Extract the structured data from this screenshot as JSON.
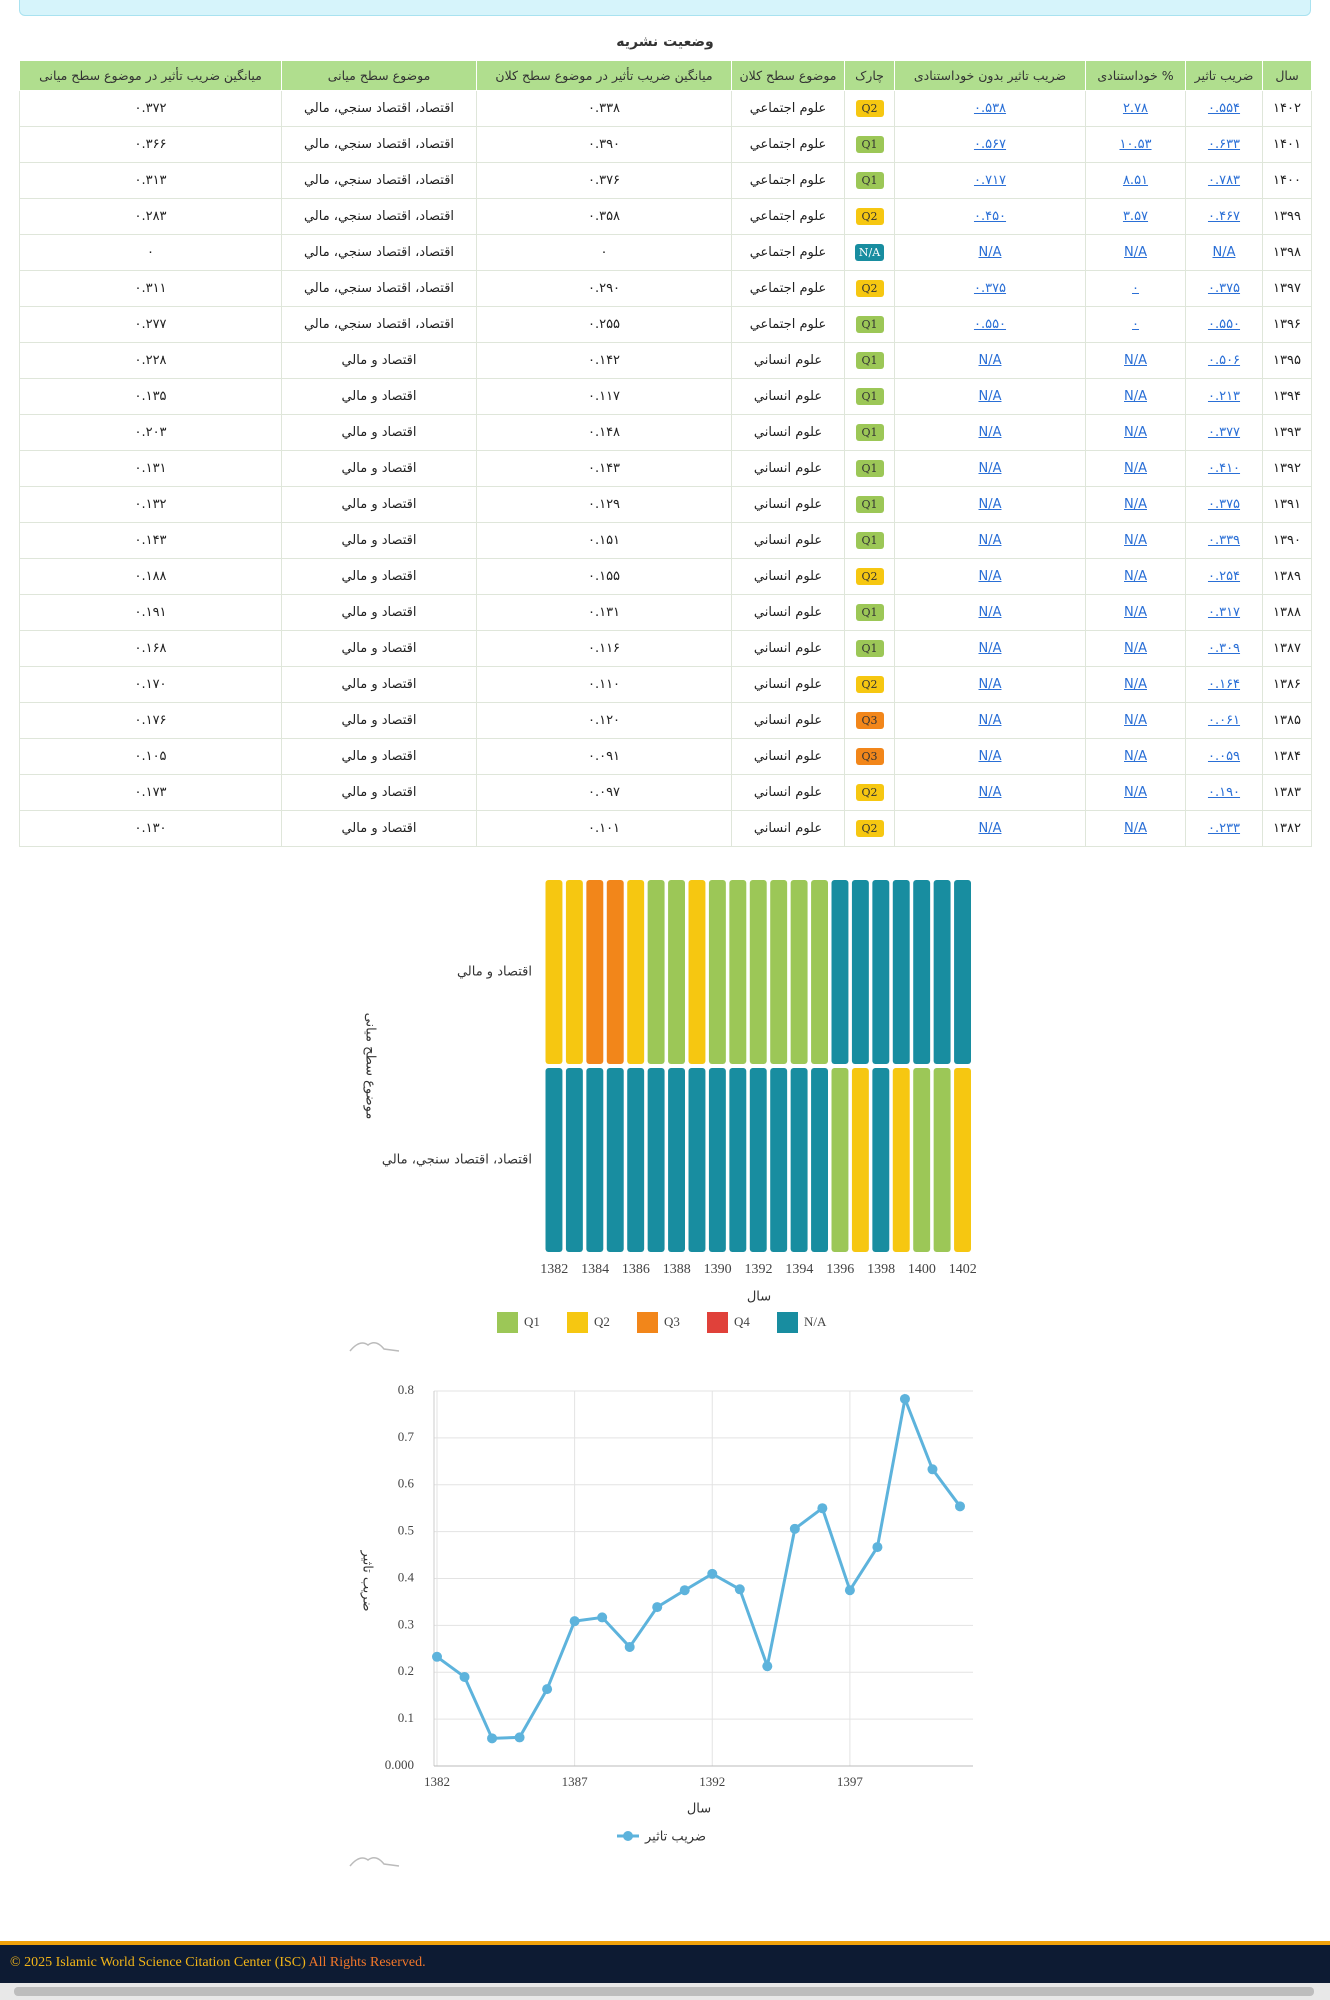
{
  "page_title": "وضعیت نشریه",
  "table": {
    "header": [
      "سال",
      "ضریب تاثیر",
      "% خوداستنادی",
      "ضریب تاثیر بدون خوداستنادی",
      "چارک",
      "موضوع سطح کلان",
      "میانگین ضریب تأثیر در موضوع سطح کلان",
      "موضوع سطح میانی",
      "میانگین ضریب تأثیر در موضوع سطح میانی"
    ],
    "rows": [
      [
        "۱۴۰۲",
        "۰.۵۵۴",
        "۲.۷۸",
        "۰.۵۳۸",
        "Q2",
        "علوم اجتماعي",
        "۰.۳۳۸",
        "اقتصاد، اقتصاد سنجي، مالي",
        "۰.۳۷۲"
      ],
      [
        "۱۴۰۱",
        "۰.۶۳۳",
        "۱۰.۵۳",
        "۰.۵۶۷",
        "Q1",
        "علوم اجتماعي",
        "۰.۳۹۰",
        "اقتصاد، اقتصاد سنجي، مالي",
        "۰.۳۶۶"
      ],
      [
        "۱۴۰۰",
        "۰.۷۸۳",
        "۸.۵۱",
        "۰.۷۱۷",
        "Q1",
        "علوم اجتماعي",
        "۰.۳۷۶",
        "اقتصاد، اقتصاد سنجي، مالي",
        "۰.۳۱۳"
      ],
      [
        "۱۳۹۹",
        "۰.۴۶۷",
        "۳.۵۷",
        "۰.۴۵۰",
        "Q2",
        "علوم اجتماعي",
        "۰.۳۵۸",
        "اقتصاد، اقتصاد سنجي، مالي",
        "۰.۲۸۳"
      ],
      [
        "۱۳۹۸",
        "N/A",
        "N/A",
        "N/A",
        "N/A",
        "علوم اجتماعي",
        "۰",
        "اقتصاد، اقتصاد سنجي، مالي",
        "۰"
      ],
      [
        "۱۳۹۷",
        "۰.۳۷۵",
        "۰",
        "۰.۳۷۵",
        "Q2",
        "علوم اجتماعي",
        "۰.۲۹۰",
        "اقتصاد، اقتصاد سنجي، مالي",
        "۰.۳۱۱"
      ],
      [
        "۱۳۹۶",
        "۰.۵۵۰",
        "۰",
        "۰.۵۵۰",
        "Q1",
        "علوم اجتماعي",
        "۰.۲۵۵",
        "اقتصاد، اقتصاد سنجي، مالي",
        "۰.۲۷۷"
      ],
      [
        "۱۳۹۵",
        "۰.۵۰۶",
        "N/A",
        "N/A",
        "Q1",
        "علوم انساني",
        "۰.۱۴۲",
        "اقتصاد و مالي",
        "۰.۲۲۸"
      ],
      [
        "۱۳۹۴",
        "۰.۲۱۳",
        "N/A",
        "N/A",
        "Q1",
        "علوم انساني",
        "۰.۱۱۷",
        "اقتصاد و مالي",
        "۰.۱۳۵"
      ],
      [
        "۱۳۹۳",
        "۰.۳۷۷",
        "N/A",
        "N/A",
        "Q1",
        "علوم انساني",
        "۰.۱۴۸",
        "اقتصاد و مالي",
        "۰.۲۰۳"
      ],
      [
        "۱۳۹۲",
        "۰.۴۱۰",
        "N/A",
        "N/A",
        "Q1",
        "علوم انساني",
        "۰.۱۴۳",
        "اقتصاد و مالي",
        "۰.۱۳۱"
      ],
      [
        "۱۳۹۱",
        "۰.۳۷۵",
        "N/A",
        "N/A",
        "Q1",
        "علوم انساني",
        "۰.۱۲۹",
        "اقتصاد و مالي",
        "۰.۱۳۲"
      ],
      [
        "۱۳۹۰",
        "۰.۳۳۹",
        "N/A",
        "N/A",
        "Q1",
        "علوم انساني",
        "۰.۱۵۱",
        "اقتصاد و مالي",
        "۰.۱۴۳"
      ],
      [
        "۱۳۸۹",
        "۰.۲۵۴",
        "N/A",
        "N/A",
        "Q2",
        "علوم انساني",
        "۰.۱۵۵",
        "اقتصاد و مالي",
        "۰.۱۸۸"
      ],
      [
        "۱۳۸۸",
        "۰.۳۱۷",
        "N/A",
        "N/A",
        "Q1",
        "علوم انساني",
        "۰.۱۳۱",
        "اقتصاد و مالي",
        "۰.۱۹۱"
      ],
      [
        "۱۳۸۷",
        "۰.۳۰۹",
        "N/A",
        "N/A",
        "Q1",
        "علوم انساني",
        "۰.۱۱۶",
        "اقتصاد و مالي",
        "۰.۱۶۸"
      ],
      [
        "۱۳۸۶",
        "۰.۱۶۴",
        "N/A",
        "N/A",
        "Q2",
        "علوم انساني",
        "۰.۱۱۰",
        "اقتصاد و مالي",
        "۰.۱۷۰"
      ],
      [
        "۱۳۸۵",
        "۰.۰۶۱",
        "N/A",
        "N/A",
        "Q3",
        "علوم انساني",
        "۰.۱۲۰",
        "اقتصاد و مالي",
        "۰.۱۷۶"
      ],
      [
        "۱۳۸۴",
        "۰.۰۵۹",
        "N/A",
        "N/A",
        "Q3",
        "علوم انساني",
        "۰.۰۹۱",
        "اقتصاد و مالي",
        "۰.۱۰۵"
      ],
      [
        "۱۳۸۳",
        "۰.۱۹۰",
        "N/A",
        "N/A",
        "Q2",
        "علوم انساني",
        "۰.۰۹۷",
        "اقتصاد و مالي",
        "۰.۱۷۳"
      ],
      [
        "۱۳۸۲",
        "۰.۲۳۳",
        "N/A",
        "N/A",
        "Q2",
        "علوم انساني",
        "۰.۱۰۱",
        "اقتصاد و مالي",
        "۰.۱۳۰"
      ]
    ]
  },
  "chart_data": [
    {
      "type": "heatmap",
      "xlabel": "سال",
      "ylabel": "موضوع سطح میانی",
      "categories": [
        "1382",
        null,
        "1384",
        null,
        "1386",
        null,
        "1388",
        null,
        "1390",
        null,
        "1392",
        null,
        "1394",
        null,
        "1396",
        null,
        "1398",
        null,
        "1400",
        null,
        "1402"
      ],
      "rows": [
        {
          "name": "اقتصاد و مالي",
          "values": [
            "Q2",
            "Q2",
            "Q3",
            "Q3",
            "Q2",
            "Q1",
            "Q1",
            "Q2",
            "Q1",
            "Q1",
            "Q1",
            "Q1",
            "Q1",
            "Q1",
            "N/A",
            "N/A",
            "N/A",
            "N/A",
            "N/A",
            "N/A",
            "N/A"
          ]
        },
        {
          "name": "اقتصاد، اقتصاد سنجي، مالي",
          "values": [
            "N/A",
            "N/A",
            "N/A",
            "N/A",
            "N/A",
            "N/A",
            "N/A",
            "N/A",
            "N/A",
            "N/A",
            "N/A",
            "N/A",
            "N/A",
            "N/A",
            "Q1",
            "Q2",
            "N/A",
            "Q2",
            "Q1",
            "Q1",
            "Q2"
          ]
        }
      ],
      "legend": [
        {
          "name": "Q1",
          "color": "#9cc757"
        },
        {
          "name": "Q2",
          "color": "#f6c711"
        },
        {
          "name": "Q3",
          "color": "#f2861a"
        },
        {
          "name": "Q4",
          "color": "#e0413a"
        },
        {
          "name": "N/A",
          "color": "#188da0"
        }
      ]
    },
    {
      "type": "line",
      "xlabel": "سال",
      "ylabel": "ضریب تاثیر",
      "categories": [
        "1382",
        null,
        null,
        null,
        null,
        "1387",
        null,
        null,
        null,
        null,
        "1392",
        null,
        null,
        null,
        null,
        "1397",
        null,
        null,
        null,
        null
      ],
      "series": [
        {
          "name": "ضریب تاثیر",
          "color": "#5db3dc",
          "values": [
            0.233,
            0.19,
            0.059,
            0.061,
            0.164,
            0.309,
            0.317,
            0.254,
            0.339,
            0.375,
            0.41,
            0.377,
            0.213,
            0.506,
            0.55,
            0.375,
            0.467,
            0.783,
            0.633,
            0.554
          ]
        }
      ],
      "ylim": [
        0,
        0.8
      ],
      "yticks": [
        {
          "value": 0,
          "label": "0.000"
        },
        0.1,
        0.2,
        0.3,
        0.4,
        0.5,
        0.6,
        0.7,
        0.8
      ],
      "grid": true
    }
  ],
  "footer": {
    "copyright": "© 2025 Islamic World Science Citation Center (ISC)",
    "rights": "All Rights Reserved."
  }
}
